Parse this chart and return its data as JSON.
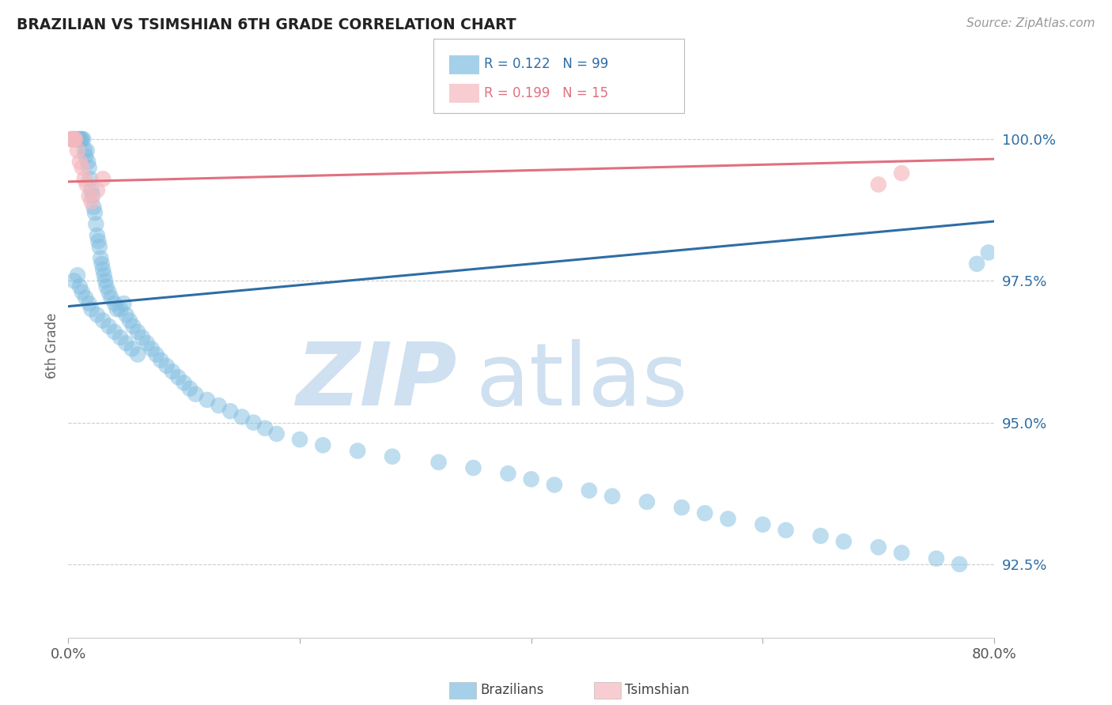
{
  "title": "BRAZILIAN VS TSIMSHIAN 6TH GRADE CORRELATION CHART",
  "source_text": "Source: ZipAtlas.com",
  "ylabel": "6th Grade",
  "xlim": [
    0.0,
    80.0
  ],
  "ylim": [
    91.2,
    101.5
  ],
  "yticks": [
    92.5,
    95.0,
    97.5,
    100.0
  ],
  "ytick_labels": [
    "92.5%",
    "95.0%",
    "97.5%",
    "100.0%"
  ],
  "legend_r_blue": "R = 0.122",
  "legend_n_blue": "N = 99",
  "legend_r_pink": "R = 0.199",
  "legend_n_pink": "N = 15",
  "blue_color": "#7fbde0",
  "pink_color": "#f5b8be",
  "blue_line_color": "#2e6da4",
  "pink_line_color": "#e07080",
  "ytick_color": "#2e6da4",
  "watermark_zip": "ZIP",
  "watermark_atlas": "atlas",
  "watermark_color": "#cfe0f0",
  "blue_line_y0": 97.05,
  "blue_line_y1": 98.55,
  "pink_line_y0": 99.25,
  "pink_line_y1": 99.65,
  "blue_scatter_x": [
    0.3,
    0.4,
    0.5,
    0.6,
    0.7,
    0.8,
    0.9,
    1.0,
    1.1,
    1.2,
    1.3,
    1.4,
    1.5,
    1.6,
    1.7,
    1.8,
    1.9,
    2.0,
    2.1,
    2.2,
    2.3,
    2.4,
    2.5,
    2.6,
    2.7,
    2.8,
    2.9,
    3.0,
    3.1,
    3.2,
    3.3,
    3.5,
    3.7,
    4.0,
    4.2,
    4.5,
    4.8,
    5.0,
    5.3,
    5.6,
    6.0,
    6.4,
    6.8,
    7.2,
    7.6,
    8.0,
    8.5,
    9.0,
    9.5,
    10.0,
    10.5,
    11.0,
    12.0,
    13.0,
    14.0,
    15.0,
    16.0,
    17.0,
    18.0,
    20.0,
    22.0,
    25.0,
    28.0,
    32.0,
    35.0,
    38.0,
    40.0,
    42.0,
    45.0,
    47.0,
    50.0,
    53.0,
    55.0,
    57.0,
    60.0,
    62.0,
    65.0,
    67.0,
    70.0,
    72.0,
    75.0,
    77.0,
    78.5,
    79.5,
    0.5,
    0.8,
    1.0,
    1.2,
    1.5,
    1.8,
    2.0,
    2.5,
    3.0,
    3.5,
    4.0,
    4.5,
    5.0,
    5.5,
    6.0
  ],
  "blue_scatter_y": [
    100.0,
    100.0,
    100.0,
    100.0,
    100.0,
    100.0,
    100.0,
    100.0,
    100.0,
    100.0,
    100.0,
    99.8,
    99.7,
    99.8,
    99.6,
    99.5,
    99.3,
    99.1,
    99.0,
    98.8,
    98.7,
    98.5,
    98.3,
    98.2,
    98.1,
    97.9,
    97.8,
    97.7,
    97.6,
    97.5,
    97.4,
    97.3,
    97.2,
    97.1,
    97.0,
    97.0,
    97.1,
    96.9,
    96.8,
    96.7,
    96.6,
    96.5,
    96.4,
    96.3,
    96.2,
    96.1,
    96.0,
    95.9,
    95.8,
    95.7,
    95.6,
    95.5,
    95.4,
    95.3,
    95.2,
    95.1,
    95.0,
    94.9,
    94.8,
    94.7,
    94.6,
    94.5,
    94.4,
    94.3,
    94.2,
    94.1,
    94.0,
    93.9,
    93.8,
    93.7,
    93.6,
    93.5,
    93.4,
    93.3,
    93.2,
    93.1,
    93.0,
    92.9,
    92.8,
    92.7,
    92.6,
    92.5,
    97.8,
    98.0,
    97.5,
    97.6,
    97.4,
    97.3,
    97.2,
    97.1,
    97.0,
    96.9,
    96.8,
    96.7,
    96.6,
    96.5,
    96.4,
    96.3,
    96.2
  ],
  "pink_scatter_x": [
    0.2,
    0.4,
    0.5,
    0.6,
    0.8,
    1.0,
    1.2,
    1.4,
    1.6,
    1.8,
    2.0,
    2.5,
    3.0,
    70.0,
    72.0
  ],
  "pink_scatter_y": [
    100.0,
    100.0,
    100.0,
    100.0,
    99.8,
    99.6,
    99.5,
    99.3,
    99.2,
    99.0,
    98.9,
    99.1,
    99.3,
    99.2,
    99.4
  ]
}
